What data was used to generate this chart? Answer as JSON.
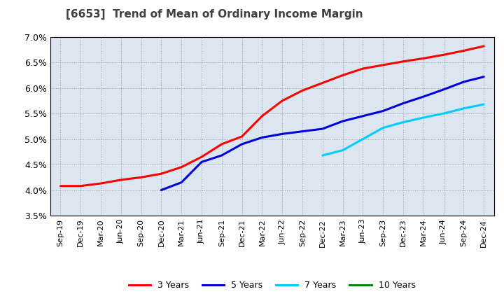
{
  "title": "[6653]  Trend of Mean of Ordinary Income Margin",
  "ylim": [
    0.035,
    0.07
  ],
  "yticks": [
    0.035,
    0.04,
    0.045,
    0.05,
    0.055,
    0.06,
    0.065,
    0.07
  ],
  "background_color": "#ffffff",
  "plot_bg_color": "#dce6f0",
  "grid_color": "#888888",
  "x_labels": [
    "Sep-19",
    "Dec-19",
    "Mar-20",
    "Jun-20",
    "Sep-20",
    "Dec-20",
    "Mar-21",
    "Jun-21",
    "Sep-21",
    "Dec-21",
    "Mar-22",
    "Jun-22",
    "Sep-22",
    "Dec-22",
    "Mar-23",
    "Jun-23",
    "Sep-23",
    "Dec-23",
    "Mar-24",
    "Jun-24",
    "Sep-24",
    "Dec-24"
  ],
  "series": {
    "3 Years": {
      "color": "#ff0000",
      "data_x": [
        0,
        1,
        2,
        3,
        4,
        5,
        6,
        7,
        8,
        9,
        10,
        11,
        12,
        13,
        14,
        15,
        16,
        17,
        18,
        19,
        20,
        21
      ],
      "data_y": [
        0.0408,
        0.0408,
        0.0413,
        0.042,
        0.0425,
        0.0432,
        0.0445,
        0.0465,
        0.049,
        0.0505,
        0.0545,
        0.0575,
        0.0595,
        0.061,
        0.0625,
        0.0638,
        0.0645,
        0.0652,
        0.0658,
        0.0665,
        0.0673,
        0.0682
      ]
    },
    "5 Years": {
      "color": "#0000dd",
      "data_x": [
        5,
        6,
        7,
        8,
        9,
        10,
        11,
        12,
        13,
        14,
        15,
        16,
        17,
        18,
        19,
        20,
        21
      ],
      "data_y": [
        0.04,
        0.0415,
        0.0455,
        0.0468,
        0.049,
        0.0503,
        0.051,
        0.0515,
        0.052,
        0.0535,
        0.0545,
        0.0555,
        0.057,
        0.0583,
        0.0597,
        0.0612,
        0.0622
      ]
    },
    "7 Years": {
      "color": "#00ccff",
      "data_x": [
        13,
        14,
        15,
        16,
        17,
        18,
        19,
        20,
        21
      ],
      "data_y": [
        0.0468,
        0.0478,
        0.05,
        0.0522,
        0.0533,
        0.0542,
        0.055,
        0.056,
        0.0568
      ]
    },
    "10 Years": {
      "color": "#008800",
      "data_x": [],
      "data_y": []
    }
  },
  "legend_labels": [
    "3 Years",
    "5 Years",
    "7 Years",
    "10 Years"
  ],
  "legend_colors": [
    "#ff0000",
    "#0000dd",
    "#00ccff",
    "#008800"
  ]
}
